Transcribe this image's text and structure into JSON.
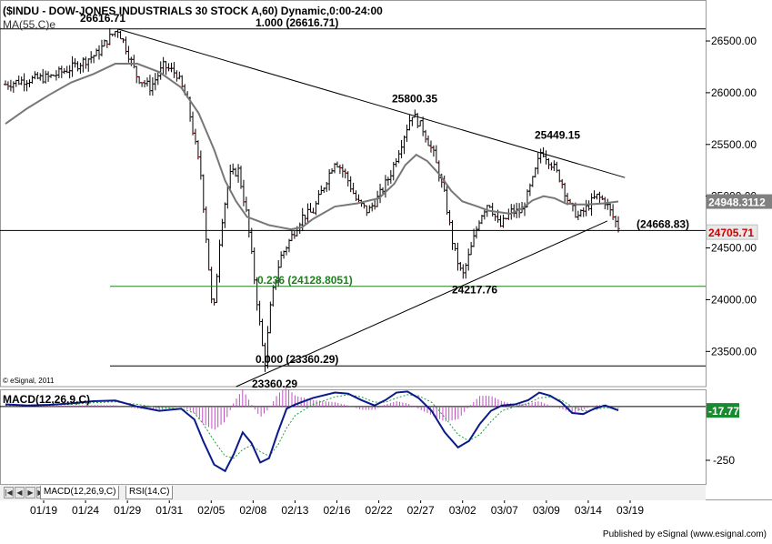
{
  "header": {
    "title": "($INDU - DOW-JONES INDUSTRIALS 30 STOCK A,60) Dynamic,0:00-24:00",
    "ma_label": "MA(55,C)e"
  },
  "chart_data": [
    {
      "type": "candlestick",
      "title": "($INDU - DOW-JONES INDUSTRIALS 30 STOCK A,60) Dynamic,0:00-24:00",
      "ylim": [
        23160,
        26720
      ],
      "y_ticks": [
        "26500.00",
        "26000.00",
        "25500.00",
        "25000.00",
        "24500.00",
        "24000.00",
        "23500.00"
      ],
      "x_ticks": [
        "01/19",
        "01/24",
        "01/29",
        "01/31",
        "02/05",
        "02/08",
        "02/13",
        "02/16",
        "02/22",
        "02/27",
        "03/02",
        "03/07",
        "03/09",
        "03/14",
        "03/19"
      ],
      "price_path": [
        [
          0,
          26080
        ],
        [
          0.8,
          26120
        ],
        [
          2,
          26150
        ],
        [
          3,
          26240
        ],
        [
          4.2,
          26380
        ],
        [
          4.6,
          26500
        ],
        [
          5.1,
          26616.71
        ],
        [
          5.4,
          26480
        ],
        [
          6,
          26150
        ],
        [
          6.6,
          26050
        ],
        [
          7.2,
          26260
        ],
        [
          7.8,
          26180
        ],
        [
          8.3,
          25900
        ],
        [
          8.9,
          25200
        ],
        [
          9.3,
          24200
        ],
        [
          9.45,
          23800
        ],
        [
          9.8,
          24700
        ],
        [
          10.2,
          25200
        ],
        [
          10.6,
          25250
        ],
        [
          11,
          24800
        ],
        [
          11.5,
          23900
        ],
        [
          11.8,
          23360.29
        ],
        [
          12.1,
          24000
        ],
        [
          12.5,
          24400
        ],
        [
          13,
          24600
        ],
        [
          13.5,
          24800
        ],
        [
          14,
          24850
        ],
        [
          14.5,
          25100
        ],
        [
          15,
          25350
        ],
        [
          15.5,
          25200
        ],
        [
          16,
          24950
        ],
        [
          16.5,
          24850
        ],
        [
          17,
          25000
        ],
        [
          17.5,
          25200
        ],
        [
          18,
          25500
        ],
        [
          18.5,
          25800.35
        ],
        [
          19,
          25650
        ],
        [
          19.5,
          25400
        ],
        [
          20,
          25000
        ],
        [
          20.4,
          24500
        ],
        [
          20.8,
          24217.76
        ],
        [
          21.2,
          24500
        ],
        [
          21.6,
          24800
        ],
        [
          22,
          24950
        ],
        [
          22.5,
          24700
        ],
        [
          23,
          24850
        ],
        [
          23.5,
          24850
        ],
        [
          24,
          25150
        ],
        [
          24.4,
          25449.15
        ],
        [
          24.9,
          25300
        ],
        [
          25.3,
          25150
        ],
        [
          25.7,
          24900
        ],
        [
          26.1,
          24800
        ],
        [
          26.5,
          24900
        ],
        [
          26.9,
          25000
        ],
        [
          27.3,
          24950
        ],
        [
          27.7,
          24780
        ],
        [
          27.9,
          24705.71
        ]
      ],
      "ma_label": "MA(55,C)e",
      "ma_path": [
        [
          0,
          25700
        ],
        [
          1,
          25850
        ],
        [
          2,
          25980
        ],
        [
          3,
          26100
        ],
        [
          4,
          26180
        ],
        [
          5,
          26280
        ],
        [
          6,
          26280
        ],
        [
          7,
          26200
        ],
        [
          8,
          26050
        ],
        [
          8.8,
          25800
        ],
        [
          9.5,
          25450
        ],
        [
          10,
          25150
        ],
        [
          10.5,
          24950
        ],
        [
          11,
          24800
        ],
        [
          11.5,
          24760
        ],
        [
          12,
          24720
        ],
        [
          12.5,
          24700
        ],
        [
          13,
          24680
        ],
        [
          13.5,
          24700
        ],
        [
          14,
          24780
        ],
        [
          15,
          24900
        ],
        [
          16,
          24930
        ],
        [
          17,
          24980
        ],
        [
          17.7,
          25120
        ],
        [
          18.2,
          25300
        ],
        [
          18.7,
          25400
        ],
        [
          19.2,
          25340
        ],
        [
          19.8,
          25200
        ],
        [
          20.3,
          25050
        ],
        [
          20.8,
          24950
        ],
        [
          21.5,
          24900
        ],
        [
          22,
          24860
        ],
        [
          23,
          24830
        ],
        [
          23.5,
          24880
        ],
        [
          24,
          24960
        ],
        [
          24.5,
          25000
        ],
        [
          25,
          24980
        ],
        [
          25.5,
          24930
        ],
        [
          26,
          24920
        ],
        [
          26.5,
          24920
        ],
        [
          27.2,
          24930
        ],
        [
          27.9,
          24948.31
        ]
      ],
      "last_value": "24705.71",
      "ma_value": "24948.3112",
      "trendlines": [
        {
          "from": [
            5.1,
            26616.71
          ],
          "to": [
            28.2,
            25180
          ]
        },
        {
          "from": [
            10.5,
            23160
          ],
          "to": [
            27.4,
            24760
          ]
        }
      ],
      "horizontal_lines": [
        {
          "y": 26616.71,
          "label": "1.000 (26616.71)"
        },
        {
          "y": 24128.8051,
          "label": "0.236 (24128.8051)"
        },
        {
          "y": 23360.29,
          "label": "0.000 (23360.29)"
        },
        {
          "y": 24668.83,
          "label": "(24668.83)"
        }
      ],
      "annotations": [
        "26616.71",
        "25800.35",
        "25449.15",
        "24217.76",
        "23360.29"
      ],
      "copyright": "© eSignal, 2011"
    },
    {
      "type": "line",
      "title": "MACD(12,26,9,C)",
      "ylim": [
        -360,
        80
      ],
      "y_ticks": [
        "-250"
      ],
      "last_value": "-17.77",
      "macd_path": [
        [
          0,
          10
        ],
        [
          1,
          5
        ],
        [
          2,
          8
        ],
        [
          3,
          15
        ],
        [
          4,
          25
        ],
        [
          5,
          28
        ],
        [
          6,
          0
        ],
        [
          7,
          -20
        ],
        [
          8,
          -10
        ],
        [
          8.6,
          -60
        ],
        [
          9,
          -160
        ],
        [
          9.5,
          -270
        ],
        [
          10,
          -300
        ],
        [
          10.4,
          -220
        ],
        [
          10.8,
          -120
        ],
        [
          11.2,
          -170
        ],
        [
          11.6,
          -260
        ],
        [
          12,
          -240
        ],
        [
          12.4,
          -120
        ],
        [
          12.8,
          -10
        ],
        [
          13.2,
          10
        ],
        [
          14,
          40
        ],
        [
          15,
          65
        ],
        [
          15.6,
          60
        ],
        [
          16.2,
          30
        ],
        [
          16.8,
          5
        ],
        [
          17.3,
          30
        ],
        [
          17.8,
          65
        ],
        [
          18.3,
          70
        ],
        [
          18.8,
          40
        ],
        [
          19.4,
          -20
        ],
        [
          20,
          -120
        ],
        [
          20.6,
          -190
        ],
        [
          21.1,
          -160
        ],
        [
          21.6,
          -80
        ],
        [
          22.1,
          -20
        ],
        [
          22.6,
          5
        ],
        [
          23.2,
          10
        ],
        [
          23.8,
          30
        ],
        [
          24.3,
          65
        ],
        [
          24.8,
          50
        ],
        [
          25.3,
          20
        ],
        [
          25.8,
          -30
        ],
        [
          26.3,
          -35
        ],
        [
          26.8,
          -10
        ],
        [
          27.3,
          5
        ],
        [
          27.9,
          -17.77
        ]
      ],
      "signal_path": [
        [
          0,
          5
        ],
        [
          1,
          5
        ],
        [
          2,
          6
        ],
        [
          3,
          10
        ],
        [
          4,
          18
        ],
        [
          5,
          22
        ],
        [
          6,
          10
        ],
        [
          7,
          -5
        ],
        [
          8,
          -10
        ],
        [
          8.6,
          -30
        ],
        [
          9,
          -80
        ],
        [
          9.5,
          -160
        ],
        [
          10,
          -230
        ],
        [
          10.4,
          -240
        ],
        [
          10.8,
          -200
        ],
        [
          11.2,
          -180
        ],
        [
          11.6,
          -210
        ],
        [
          12,
          -230
        ],
        [
          12.4,
          -180
        ],
        [
          12.8,
          -100
        ],
        [
          13.2,
          -40
        ],
        [
          14,
          10
        ],
        [
          15,
          45
        ],
        [
          15.6,
          55
        ],
        [
          16.2,
          45
        ],
        [
          16.8,
          20
        ],
        [
          17.3,
          20
        ],
        [
          17.8,
          40
        ],
        [
          18.3,
          55
        ],
        [
          18.8,
          50
        ],
        [
          19.4,
          20
        ],
        [
          20,
          -50
        ],
        [
          20.6,
          -130
        ],
        [
          21.1,
          -160
        ],
        [
          21.6,
          -130
        ],
        [
          22.1,
          -70
        ],
        [
          22.6,
          -20
        ],
        [
          23.2,
          0
        ],
        [
          23.8,
          15
        ],
        [
          24.3,
          40
        ],
        [
          24.8,
          45
        ],
        [
          25.3,
          30
        ],
        [
          25.8,
          0
        ],
        [
          26.3,
          -20
        ],
        [
          26.8,
          -15
        ],
        [
          27.3,
          -5
        ],
        [
          27.9,
          -10
        ]
      ]
    }
  ],
  "tabs": [
    "MACD(12,26,9,C)",
    "RSI(14,C)"
  ],
  "footer": "Published by eSignal (www.esignal.com)"
}
